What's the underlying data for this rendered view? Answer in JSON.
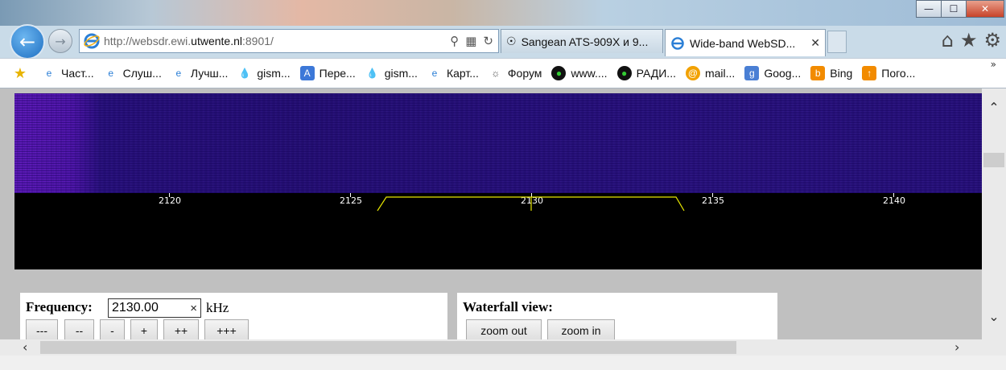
{
  "window": {
    "min_label": "—",
    "max_label": "☐",
    "close_label": "✕"
  },
  "nav": {
    "address_prefix": "http://websdr.ewi.",
    "address_domain": "utwente.nl",
    "address_suffix": ":8901/",
    "tabs": [
      {
        "label": "Sangean ATS-909X и 9...",
        "active": false
      },
      {
        "label": "Wide-band WebSD...",
        "active": true
      }
    ]
  },
  "favorites": {
    "items": [
      {
        "label": "Част...",
        "icon": "ie-icon"
      },
      {
        "label": "Слуш...",
        "icon": "ie-icon"
      },
      {
        "label": "Лучш...",
        "icon": "ie-icon"
      },
      {
        "label": "gism...",
        "icon": "drop-icon"
      },
      {
        "label": "Пере...",
        "icon": "translate-icon"
      },
      {
        "label": "gism...",
        "icon": "drop-icon"
      },
      {
        "label": "Карт...",
        "icon": "ie-icon"
      },
      {
        "label": "Форум",
        "icon": "satellite-icon"
      },
      {
        "label": "www....",
        "icon": "radio-icon"
      },
      {
        "label": "РАДИ...",
        "icon": "radio-icon"
      },
      {
        "label": "mail...",
        "icon": "mail-icon"
      },
      {
        "label": "Goog...",
        "icon": "google-icon"
      },
      {
        "label": "Bing",
        "icon": "bing-icon"
      },
      {
        "label": "Пого...",
        "icon": "weather-icon"
      }
    ],
    "more": "»"
  },
  "scale": {
    "labels": [
      "2120",
      "2125",
      "2130",
      "2135",
      "2140"
    ],
    "tuned_khz": 2130.0,
    "passband_khz": [
      2126,
      2134
    ]
  },
  "frequency": {
    "label": "Frequency:",
    "value": "2130.00",
    "clear": "×",
    "unit": "kHz",
    "buttons": [
      "---",
      "--",
      "-",
      "+",
      "++",
      "+++"
    ]
  },
  "waterfall": {
    "label": "Waterfall view:",
    "zoom_out": "zoom out",
    "zoom_in": "zoom in"
  }
}
